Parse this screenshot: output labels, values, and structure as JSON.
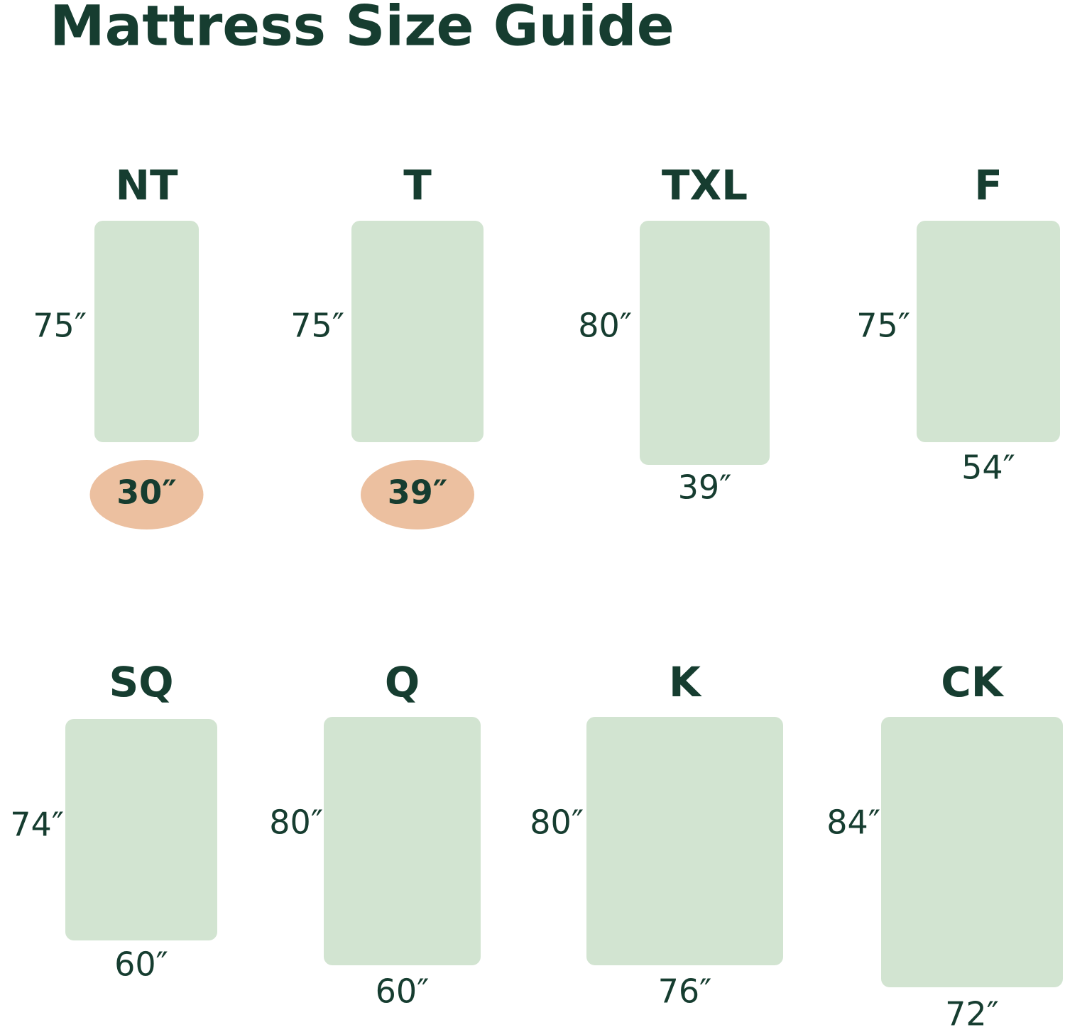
{
  "title": "Mattress Size Guide",
  "sizes": [
    {
      "name": "NT",
      "length": "75″",
      "width": "30″",
      "highlighted": true
    },
    {
      "name": "T",
      "length": "75″",
      "width": "39″",
      "highlighted": true
    },
    {
      "name": "TXL",
      "length": "80″",
      "width": "39″",
      "highlighted": false
    },
    {
      "name": "F",
      "length": "75″",
      "width": "54″",
      "highlighted": false
    },
    {
      "name": "SQ",
      "length": "74″",
      "width": "60″",
      "highlighted": false
    },
    {
      "name": "Q",
      "length": "80″",
      "width": "60″",
      "highlighted": false
    },
    {
      "name": "K",
      "length": "80″",
      "width": "76″",
      "highlighted": false
    },
    {
      "name": "CK",
      "length": "84″",
      "width": "72″",
      "highlighted": false
    }
  ]
}
